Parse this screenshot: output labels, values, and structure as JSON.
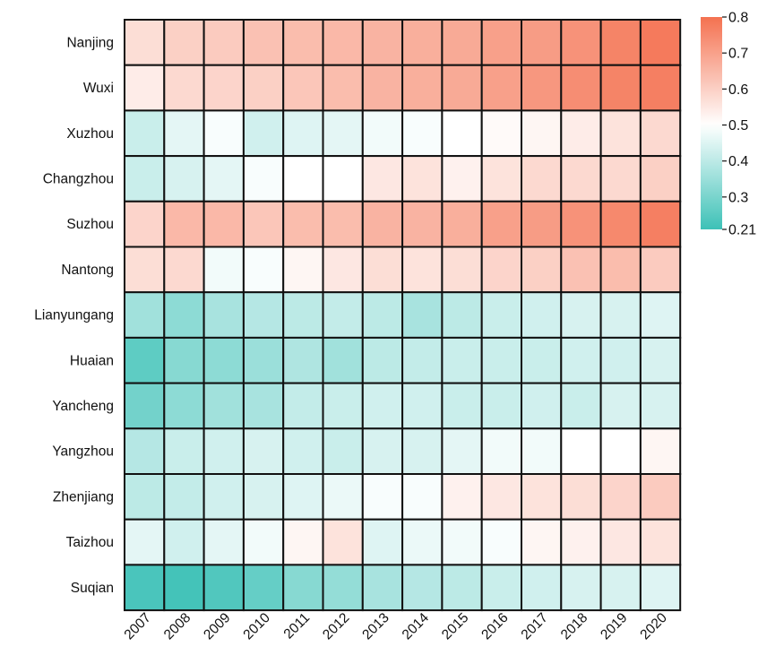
{
  "chart_data": {
    "type": "heatmap",
    "title": "",
    "xlabel": "",
    "ylabel": "",
    "x": [
      "2007",
      "2008",
      "2009",
      "2010",
      "2011",
      "2012",
      "2013",
      "2014",
      "2015",
      "2016",
      "2017",
      "2018",
      "2019",
      "2020"
    ],
    "y": [
      "Nanjing",
      "Wuxi",
      "Xuzhou",
      "Changzhou",
      "Suzhou",
      "Nantong",
      "Lianyungang",
      "Huaian",
      "Yancheng",
      "Yangzhou",
      "Zhenjiang",
      "Taizhou",
      "Suqian"
    ],
    "values": [
      [
        0.57,
        0.6,
        0.61,
        0.63,
        0.64,
        0.65,
        0.66,
        0.67,
        0.68,
        0.7,
        0.71,
        0.73,
        0.76,
        0.78
      ],
      [
        0.54,
        0.58,
        0.59,
        0.6,
        0.62,
        0.64,
        0.66,
        0.67,
        0.68,
        0.7,
        0.72,
        0.74,
        0.76,
        0.77
      ],
      [
        0.42,
        0.46,
        0.49,
        0.43,
        0.45,
        0.46,
        0.48,
        0.49,
        0.5,
        0.51,
        0.52,
        0.54,
        0.56,
        0.58
      ],
      [
        0.42,
        0.44,
        0.46,
        0.49,
        0.5,
        0.5,
        0.55,
        0.56,
        0.53,
        0.56,
        0.58,
        0.58,
        0.58,
        0.6
      ],
      [
        0.59,
        0.65,
        0.65,
        0.62,
        0.64,
        0.64,
        0.66,
        0.66,
        0.67,
        0.7,
        0.71,
        0.73,
        0.75,
        0.77
      ],
      [
        0.57,
        0.58,
        0.48,
        0.49,
        0.52,
        0.55,
        0.57,
        0.56,
        0.57,
        0.59,
        0.6,
        0.63,
        0.64,
        0.61
      ],
      [
        0.36,
        0.33,
        0.37,
        0.39,
        0.4,
        0.41,
        0.4,
        0.37,
        0.4,
        0.42,
        0.43,
        0.44,
        0.44,
        0.45
      ],
      [
        0.26,
        0.32,
        0.33,
        0.35,
        0.38,
        0.36,
        0.4,
        0.41,
        0.42,
        0.42,
        0.42,
        0.43,
        0.43,
        0.44
      ],
      [
        0.29,
        0.33,
        0.36,
        0.37,
        0.41,
        0.42,
        0.43,
        0.43,
        0.42,
        0.42,
        0.43,
        0.42,
        0.44,
        0.44
      ],
      [
        0.39,
        0.42,
        0.43,
        0.44,
        0.43,
        0.42,
        0.44,
        0.44,
        0.46,
        0.48,
        0.48,
        0.5,
        0.5,
        0.52
      ],
      [
        0.4,
        0.41,
        0.43,
        0.44,
        0.45,
        0.47,
        0.49,
        0.49,
        0.53,
        0.55,
        0.56,
        0.57,
        0.59,
        0.61
      ],
      [
        0.46,
        0.43,
        0.46,
        0.48,
        0.52,
        0.56,
        0.45,
        0.47,
        0.48,
        0.49,
        0.52,
        0.53,
        0.55,
        0.56
      ],
      [
        0.23,
        0.22,
        0.24,
        0.27,
        0.32,
        0.34,
        0.37,
        0.39,
        0.4,
        0.42,
        0.43,
        0.44,
        0.44,
        0.45
      ]
    ],
    "colorbar": {
      "min": 0.21,
      "max": 0.8,
      "ticks": [
        "0.21",
        "0.3",
        "0.4",
        "0.5",
        "0.6",
        "0.7",
        "0.8"
      ],
      "tick_values": [
        0.21,
        0.3,
        0.4,
        0.5,
        0.6,
        0.7,
        0.8
      ],
      "low_color": "#3dc1b7",
      "mid_color": "#ffffff",
      "high_color": "#f47150",
      "mid_value": 0.5
    }
  }
}
